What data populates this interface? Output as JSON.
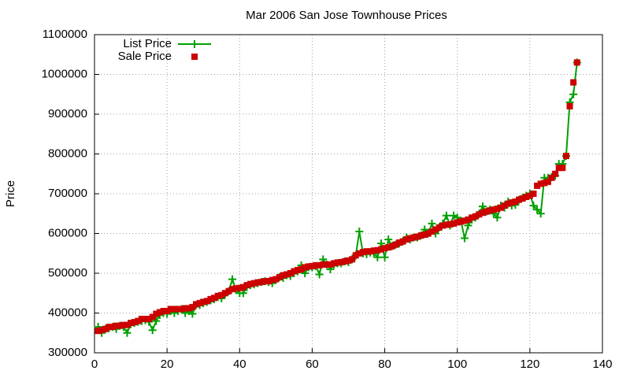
{
  "chart_data": {
    "type": "line",
    "title": "Mar 2006 San Jose Townhouse Prices",
    "y_label": "Price",
    "x": [
      1,
      2,
      3,
      4,
      5,
      6,
      7,
      8,
      9,
      10,
      11,
      12,
      13,
      14,
      15,
      16,
      17,
      18,
      19,
      20,
      21,
      22,
      23,
      24,
      25,
      26,
      27,
      28,
      29,
      30,
      31,
      32,
      33,
      34,
      35,
      36,
      37,
      38,
      39,
      40,
      41,
      42,
      43,
      44,
      45,
      46,
      47,
      48,
      49,
      50,
      51,
      52,
      53,
      54,
      55,
      56,
      57,
      58,
      59,
      60,
      61,
      62,
      63,
      64,
      65,
      66,
      67,
      68,
      69,
      70,
      71,
      72,
      73,
      74,
      75,
      76,
      77,
      78,
      79,
      80,
      81,
      82,
      83,
      84,
      85,
      86,
      87,
      88,
      89,
      90,
      91,
      92,
      93,
      94,
      95,
      96,
      97,
      98,
      99,
      100,
      101,
      102,
      103,
      104,
      105,
      106,
      107,
      108,
      109,
      110,
      111,
      112,
      113,
      114,
      115,
      116,
      117,
      118,
      119,
      120,
      121,
      122,
      123,
      124,
      125,
      126,
      127,
      128,
      129,
      130,
      131,
      132,
      133
    ],
    "series": [
      {
        "name": "List Price",
        "color": "#00a000",
        "style": "linespoints",
        "values": [
          365000,
          350000,
          360000,
          362000,
          365000,
          360000,
          368000,
          365000,
          350000,
          372000,
          375000,
          378000,
          380000,
          382000,
          378000,
          357000,
          380000,
          395000,
          400000,
          398000,
          405000,
          400000,
          405000,
          410000,
          400000,
          405000,
          398000,
          420000,
          420000,
          425000,
          428000,
          432000,
          435000,
          440000,
          437000,
          448000,
          455000,
          485000,
          458000,
          450000,
          450000,
          465000,
          470000,
          472000,
          475000,
          478000,
          480000,
          478000,
          475000,
          483000,
          490000,
          488000,
          495000,
          493000,
          500000,
          505000,
          520000,
          500000,
          515000,
          515000,
          518000,
          497000,
          535000,
          522000,
          510000,
          522000,
          525000,
          525000,
          530000,
          528000,
          535000,
          545000,
          605000,
          550000,
          548000,
          552000,
          550000,
          540000,
          575000,
          540000,
          585000,
          568000,
          572000,
          575000,
          580000,
          590000,
          585000,
          590000,
          590000,
          595000,
          610000,
          600000,
          625000,
          600000,
          615000,
          625000,
          645000,
          620000,
          645000,
          640000,
          632000,
          588000,
          620000,
          635000,
          640000,
          650000,
          668000,
          655000,
          660000,
          650000,
          640000,
          670000,
          665000,
          680000,
          670000,
          672000,
          685000,
          690000,
          695000,
          700000,
          670000,
          660000,
          650000,
          740000,
          740000,
          742000,
          745000,
          775000,
          775000,
          795000,
          930000,
          950000,
          1030000
        ]
      },
      {
        "name": "Sale Price",
        "color": "#cc0000",
        "style": "points",
        "values": [
          355000,
          357000,
          360000,
          365000,
          365000,
          368000,
          368000,
          370000,
          370000,
          375000,
          377000,
          380000,
          385000,
          385000,
          385000,
          390000,
          398000,
          402000,
          405000,
          405000,
          410000,
          410000,
          410000,
          410000,
          412000,
          412000,
          415000,
          422000,
          425000,
          428000,
          430000,
          435000,
          438000,
          443000,
          445000,
          450000,
          455000,
          460000,
          462000,
          463000,
          465000,
          470000,
          473000,
          475000,
          477000,
          478000,
          480000,
          480000,
          483000,
          485000,
          490000,
          495000,
          497000,
          500000,
          505000,
          508000,
          510000,
          515000,
          517000,
          518000,
          520000,
          520000,
          522000,
          522000,
          522000,
          525000,
          527000,
          528000,
          530000,
          532000,
          535000,
          545000,
          550000,
          553000,
          555000,
          555000,
          557000,
          558000,
          560000,
          563000,
          565000,
          568000,
          572000,
          577000,
          580000,
          585000,
          588000,
          590000,
          592000,
          595000,
          597000,
          600000,
          605000,
          610000,
          615000,
          620000,
          622000,
          623000,
          625000,
          628000,
          630000,
          632000,
          635000,
          640000,
          643000,
          648000,
          652000,
          655000,
          658000,
          660000,
          662000,
          665000,
          670000,
          675000,
          678000,
          680000,
          685000,
          688000,
          692000,
          695000,
          700000,
          720000,
          725000,
          727000,
          730000,
          740000,
          750000,
          765000,
          765000,
          795000,
          920000,
          980000,
          1030000
        ]
      }
    ],
    "xlim": [
      0,
      140
    ],
    "xticks": [
      0,
      20,
      40,
      60,
      80,
      100,
      120,
      140
    ],
    "ylim": [
      300000,
      1100000
    ],
    "yticks": [
      300000,
      400000,
      500000,
      600000,
      700000,
      800000,
      900000,
      1000000,
      1100000
    ],
    "grid": true,
    "legend": "top-left"
  }
}
